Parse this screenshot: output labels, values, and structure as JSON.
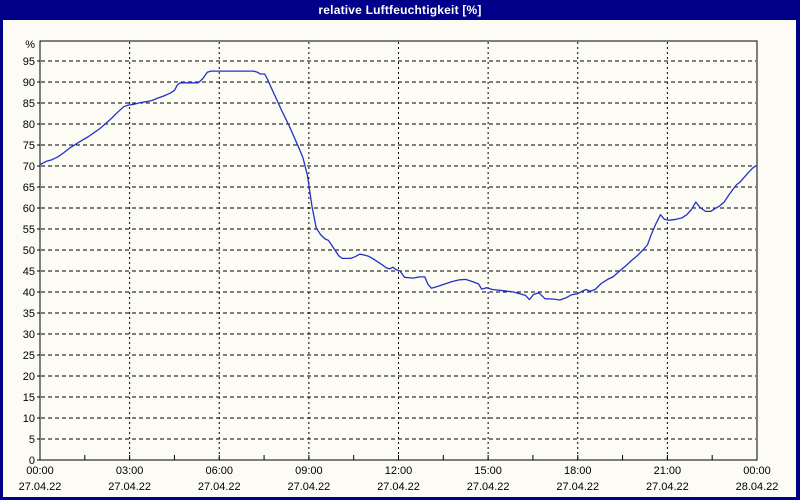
{
  "window": {
    "title": "relative Luftfeuchtigkeit [%]"
  },
  "colors": {
    "title_bar": "#00008B",
    "window_border": "#00008B",
    "background": "#FCFCF4",
    "plot_line": "#2233C4",
    "grid": "#000000",
    "text": "#000000"
  },
  "chart_data": {
    "type": "line",
    "title": "relative Luftfeuchtigkeit [%]",
    "xlabel": "",
    "ylabel": "%",
    "ylim": [
      0,
      100
    ],
    "xlim_hours": [
      0,
      24
    ],
    "grid": "dashed",
    "legend": "none",
    "y_ticks": [
      0,
      5,
      10,
      15,
      20,
      25,
      30,
      35,
      40,
      45,
      50,
      55,
      60,
      65,
      70,
      75,
      80,
      85,
      90,
      95
    ],
    "y_axis_unit_label": "%",
    "x_ticks_hours": [
      0,
      3,
      6,
      9,
      12,
      15,
      18,
      21,
      24
    ],
    "x_tick_time_labels": [
      "00:00",
      "03:00",
      "06:00",
      "09:00",
      "12:00",
      "15:00",
      "18:00",
      "21:00",
      "00:00"
    ],
    "x_tick_date_labels": [
      "27.04.22",
      "27.04.22",
      "27.04.22",
      "27.04.22",
      "27.04.22",
      "27.04.22",
      "27.04.22",
      "27.04.22",
      "28.04.22"
    ],
    "x_minor_tick_hours": 1.5,
    "series": [
      {
        "name": "relative Luftfeuchtigkeit",
        "unit": "%",
        "points": [
          [
            0.0,
            70.3
          ],
          [
            0.2,
            71.1
          ],
          [
            0.4,
            71.5
          ],
          [
            0.6,
            72.2
          ],
          [
            0.8,
            73.2
          ],
          [
            1.0,
            74.3
          ],
          [
            1.2,
            75.2
          ],
          [
            1.4,
            76.1
          ],
          [
            1.6,
            76.9
          ],
          [
            1.8,
            77.9
          ],
          [
            2.0,
            78.9
          ],
          [
            2.2,
            80.1
          ],
          [
            2.4,
            81.4
          ],
          [
            2.6,
            82.8
          ],
          [
            2.8,
            84.1
          ],
          [
            2.95,
            84.5
          ],
          [
            3.15,
            84.7
          ],
          [
            3.35,
            85.1
          ],
          [
            3.55,
            85.3
          ],
          [
            3.75,
            85.6
          ],
          [
            3.95,
            86.2
          ],
          [
            4.15,
            86.7
          ],
          [
            4.35,
            87.3
          ],
          [
            4.5,
            88.0
          ],
          [
            4.6,
            89.3
          ],
          [
            4.7,
            89.8
          ],
          [
            5.3,
            89.8
          ],
          [
            5.45,
            90.8
          ],
          [
            5.6,
            92.3
          ],
          [
            5.72,
            92.6
          ],
          [
            7.15,
            92.6
          ],
          [
            7.28,
            92.3
          ],
          [
            7.38,
            91.9
          ],
          [
            7.52,
            91.9
          ],
          [
            7.62,
            90.6
          ],
          [
            7.75,
            88.5
          ],
          [
            7.9,
            86.2
          ],
          [
            8.05,
            83.8
          ],
          [
            8.2,
            81.6
          ],
          [
            8.35,
            79.4
          ],
          [
            8.5,
            77.0
          ],
          [
            8.65,
            74.6
          ],
          [
            8.8,
            72.0
          ],
          [
            8.95,
            67.8
          ],
          [
            9.1,
            60.5
          ],
          [
            9.25,
            55.2
          ],
          [
            9.4,
            53.6
          ],
          [
            9.55,
            52.6
          ],
          [
            9.65,
            52.3
          ],
          [
            9.75,
            51.3
          ],
          [
            9.87,
            50.0
          ],
          [
            10.0,
            48.6
          ],
          [
            10.12,
            48.0
          ],
          [
            10.4,
            48.0
          ],
          [
            10.55,
            48.4
          ],
          [
            10.7,
            49.0
          ],
          [
            10.85,
            48.8
          ],
          [
            11.0,
            48.5
          ],
          [
            11.15,
            47.9
          ],
          [
            11.3,
            47.2
          ],
          [
            11.45,
            46.5
          ],
          [
            11.58,
            45.8
          ],
          [
            11.7,
            45.5
          ],
          [
            11.82,
            45.9
          ],
          [
            11.92,
            45.3
          ],
          [
            12.05,
            45.0
          ],
          [
            12.2,
            43.5
          ],
          [
            12.5,
            43.3
          ],
          [
            12.7,
            43.6
          ],
          [
            12.88,
            43.6
          ],
          [
            12.98,
            41.9
          ],
          [
            13.1,
            40.9
          ],
          [
            13.3,
            41.3
          ],
          [
            13.55,
            41.9
          ],
          [
            13.8,
            42.5
          ],
          [
            14.05,
            42.9
          ],
          [
            14.25,
            43.0
          ],
          [
            14.5,
            42.4
          ],
          [
            14.68,
            41.9
          ],
          [
            14.78,
            40.7
          ],
          [
            14.95,
            41.0
          ],
          [
            15.15,
            40.6
          ],
          [
            15.5,
            40.3
          ],
          [
            15.85,
            40.0
          ],
          [
            16.1,
            39.5
          ],
          [
            16.25,
            39.2
          ],
          [
            16.38,
            38.2
          ],
          [
            16.52,
            39.4
          ],
          [
            16.7,
            39.8
          ],
          [
            16.9,
            38.4
          ],
          [
            17.2,
            38.3
          ],
          [
            17.4,
            38.1
          ],
          [
            17.6,
            38.6
          ],
          [
            17.78,
            39.3
          ],
          [
            18.0,
            39.6
          ],
          [
            18.15,
            40.2
          ],
          [
            18.28,
            40.6
          ],
          [
            18.42,
            40.2
          ],
          [
            18.58,
            40.6
          ],
          [
            18.78,
            42.0
          ],
          [
            19.0,
            43.0
          ],
          [
            19.18,
            43.6
          ],
          [
            19.4,
            45.0
          ],
          [
            19.6,
            46.2
          ],
          [
            19.8,
            47.5
          ],
          [
            20.0,
            48.7
          ],
          [
            20.18,
            50.0
          ],
          [
            20.33,
            51.2
          ],
          [
            20.48,
            54.0
          ],
          [
            20.62,
            56.3
          ],
          [
            20.77,
            58.4
          ],
          [
            20.9,
            57.3
          ],
          [
            21.05,
            57.1
          ],
          [
            21.3,
            57.3
          ],
          [
            21.5,
            57.7
          ],
          [
            21.65,
            58.4
          ],
          [
            21.8,
            59.6
          ],
          [
            21.95,
            61.4
          ],
          [
            22.1,
            60.1
          ],
          [
            22.28,
            59.2
          ],
          [
            22.45,
            59.2
          ],
          [
            22.6,
            59.9
          ],
          [
            22.75,
            60.5
          ],
          [
            22.9,
            61.4
          ],
          [
            23.05,
            63.0
          ],
          [
            23.2,
            64.5
          ],
          [
            23.32,
            65.6
          ],
          [
            23.42,
            66.1
          ],
          [
            23.57,
            67.3
          ],
          [
            23.72,
            68.5
          ],
          [
            23.87,
            69.6
          ],
          [
            24.0,
            70.2
          ]
        ]
      }
    ]
  }
}
